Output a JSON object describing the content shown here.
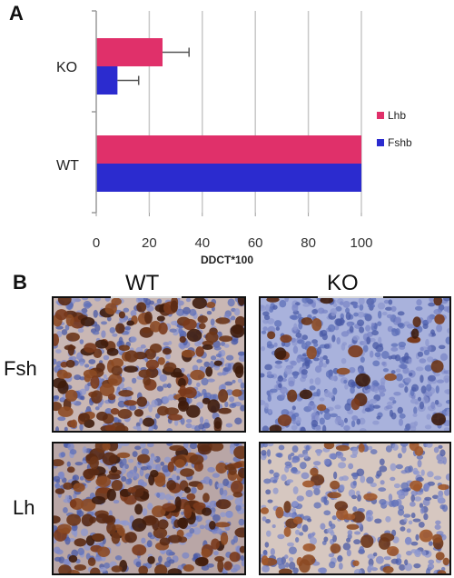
{
  "panel_a": {
    "letter": "A"
  },
  "panel_b": {
    "letter": "B",
    "columns": [
      "WT",
      "KO"
    ],
    "rows": [
      "Fsh",
      "Lh"
    ]
  },
  "colors": {
    "lhb": "#e0306a",
    "fshb": "#2b2bcf",
    "grid": "#c8c8c8",
    "axis": "#9a9a9a"
  },
  "chart_data": {
    "type": "bar",
    "orientation": "horizontal",
    "categories": [
      "KO",
      "WT"
    ],
    "series": [
      {
        "name": "Lhb",
        "values": [
          25,
          100
        ],
        "errors": [
          10,
          null
        ]
      },
      {
        "name": "Fshb",
        "values": [
          8,
          100
        ],
        "errors": [
          8,
          null
        ]
      }
    ],
    "xlabel": "DDCT*100",
    "ylabel": "",
    "xlim": [
      0,
      100
    ],
    "xticks": [
      "0",
      "20",
      "40",
      "60",
      "80",
      "100"
    ],
    "grid": true,
    "legend_position": "right"
  }
}
